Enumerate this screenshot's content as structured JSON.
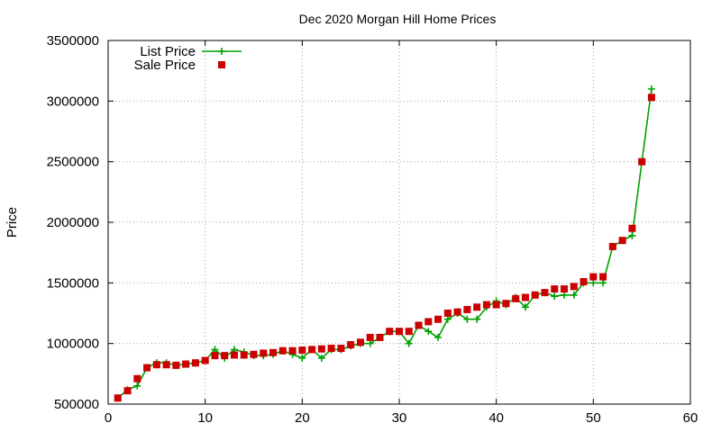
{
  "chart_data": {
    "type": "line",
    "title": "Dec 2020 Morgan Hill Home Prices",
    "xlabel": "",
    "ylabel": "Price",
    "xlim": [
      0,
      60
    ],
    "ylim": [
      500000,
      3500000
    ],
    "x_ticks": [
      0,
      10,
      20,
      30,
      40,
      50,
      60
    ],
    "y_ticks": [
      500000,
      1000000,
      1500000,
      2000000,
      2500000,
      3000000,
      3500000
    ],
    "grid": true,
    "legend_position": "top-left",
    "series": [
      {
        "name": "List Price",
        "style": "line+cross",
        "color": "#00a000",
        "x": [
          1,
          2,
          3,
          4,
          5,
          6,
          7,
          8,
          9,
          10,
          11,
          12,
          13,
          14,
          15,
          16,
          17,
          18,
          19,
          20,
          21,
          22,
          23,
          24,
          25,
          26,
          27,
          28,
          29,
          30,
          31,
          32,
          33,
          34,
          35,
          36,
          37,
          38,
          39,
          40,
          41,
          42,
          43,
          44,
          45,
          46,
          47,
          48,
          49,
          50,
          51,
          52,
          53,
          54,
          55,
          56
        ],
        "y": [
          550000,
          620000,
          650000,
          800000,
          840000,
          840000,
          820000,
          830000,
          840000,
          860000,
          950000,
          880000,
          950000,
          930000,
          900000,
          900000,
          910000,
          940000,
          910000,
          880000,
          950000,
          880000,
          950000,
          950000,
          980000,
          1000000,
          1000000,
          1050000,
          1100000,
          1100000,
          1000000,
          1150000,
          1100000,
          1050000,
          1200000,
          1250000,
          1200000,
          1200000,
          1300000,
          1350000,
          1320000,
          1380000,
          1300000,
          1400000,
          1420000,
          1390000,
          1400000,
          1400000,
          1500000,
          1500000,
          1500000,
          1800000,
          1850000,
          1890000,
          2500000,
          3100000
        ]
      },
      {
        "name": "Sale Price",
        "style": "points",
        "color": "#cc0000",
        "x": [
          1,
          2,
          3,
          4,
          5,
          6,
          7,
          8,
          9,
          10,
          11,
          12,
          13,
          14,
          15,
          16,
          17,
          18,
          19,
          20,
          21,
          22,
          23,
          24,
          25,
          26,
          27,
          28,
          29,
          30,
          31,
          32,
          33,
          34,
          35,
          36,
          37,
          38,
          39,
          40,
          41,
          42,
          43,
          44,
          45,
          46,
          47,
          48,
          49,
          50,
          51,
          52,
          53,
          54,
          55,
          56
        ],
        "y": [
          550000,
          610000,
          710000,
          800000,
          825000,
          825000,
          820000,
          830000,
          840000,
          860000,
          900000,
          900000,
          905000,
          905000,
          910000,
          920000,
          925000,
          940000,
          940000,
          945000,
          950000,
          955000,
          960000,
          960000,
          990000,
          1010000,
          1050000,
          1050000,
          1100000,
          1100000,
          1100000,
          1150000,
          1180000,
          1200000,
          1250000,
          1260000,
          1280000,
          1300000,
          1320000,
          1320000,
          1330000,
          1370000,
          1380000,
          1400000,
          1420000,
          1450000,
          1450000,
          1470000,
          1510000,
          1550000,
          1550000,
          1800000,
          1850000,
          1950000,
          2500000,
          3030000
        ]
      }
    ]
  }
}
